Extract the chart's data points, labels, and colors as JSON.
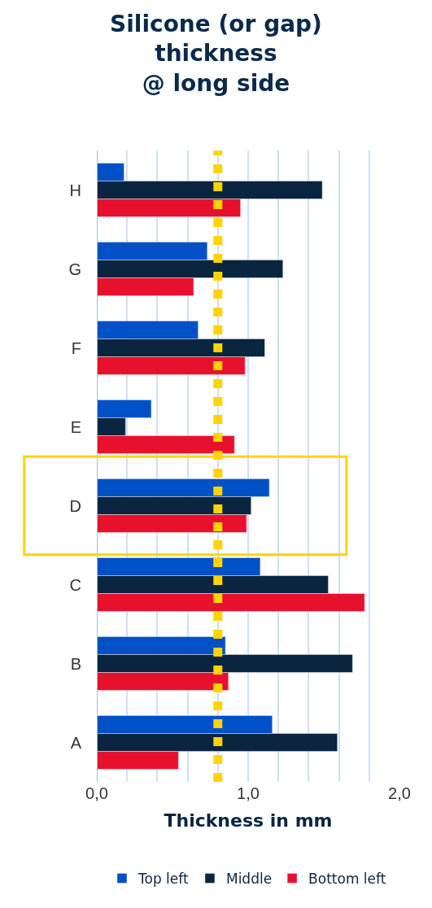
{
  "chart_data": {
    "type": "bar",
    "orientation": "horizontal",
    "title": "Silicone (or gap)\nthickness\n@ long side",
    "xlabel": "Thickness in mm",
    "categories": [
      "H",
      "G",
      "F",
      "E",
      "D",
      "C",
      "B",
      "A"
    ],
    "series": [
      {
        "name": "Top left",
        "color": "#0050c8",
        "values": [
          0.18,
          0.73,
          0.67,
          0.36,
          1.14,
          1.08,
          0.85,
          1.16
        ]
      },
      {
        "name": "Middle",
        "color": "#0a2540",
        "values": [
          1.49,
          1.23,
          1.11,
          0.19,
          1.02,
          1.53,
          1.69,
          1.59
        ]
      },
      {
        "name": "Bottom left",
        "color": "#e8112d",
        "values": [
          0.95,
          0.64,
          0.98,
          0.91,
          0.99,
          1.77,
          0.87,
          0.54
        ]
      }
    ],
    "xlim": [
      0,
      2
    ],
    "xticks": [
      {
        "value": 0,
        "label": "0,0"
      },
      {
        "value": 0.2,
        "label": null
      },
      {
        "value": 0.4,
        "label": null
      },
      {
        "value": 0.6,
        "label": null
      },
      {
        "value": 0.8,
        "label": null
      },
      {
        "value": 1,
        "label": "1,0"
      },
      {
        "value": 1.2,
        "label": null
      },
      {
        "value": 1.4,
        "label": null
      },
      {
        "value": 1.6,
        "label": null
      },
      {
        "value": 1.8,
        "label": null
      },
      {
        "value": 2,
        "label": "2,0"
      }
    ],
    "ref_lines": [
      {
        "axis": "x",
        "value": 0.8,
        "color": "#ffd400",
        "line_style": "dotted"
      }
    ],
    "grid": "x",
    "legend": "bottom"
  }
}
